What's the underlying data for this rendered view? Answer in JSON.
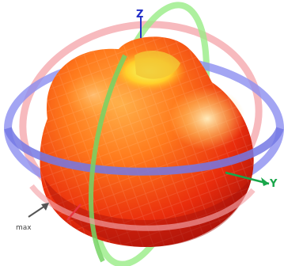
{
  "labels": {
    "z_axis": "Z",
    "y_axis": "Y",
    "max": "max"
  },
  "colors": {
    "background": "#ffffff",
    "pattern_light": "#ffdf3a",
    "pattern_mid": "#ff8a1e",
    "pattern_dark": "#e01b0a",
    "ring_blue": "#8c8ff0",
    "ring_pink": "#f4a3a8",
    "ring_green": "#98ec86",
    "axis_z": "#2430c8",
    "axis_y": "#19a64a",
    "axis_x": "#e8343f",
    "max_arrow": "#555555"
  },
  "icons": {
    "max_marker": "arrow-icon"
  }
}
